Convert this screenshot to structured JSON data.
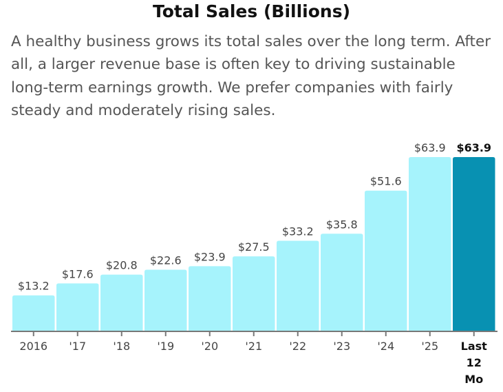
{
  "title": "Total Sales (Billions)",
  "description": "A healthy business grows its total sales over the long term. After all, a larger revenue base is often key to driving sustainable long-term earnings growth. We prefer companies with fairly steady and moderately rising sales.",
  "colors": {
    "bar": "#a6f3fc",
    "highlight": "#0891b2",
    "axis": "#777"
  },
  "chart_data": {
    "type": "bar",
    "title": "Total Sales (Billions)",
    "categories": [
      "2016",
      "'17",
      "'18",
      "'19",
      "'20",
      "'21",
      "'22",
      "'23",
      "'24",
      "'25",
      "Last 12 Mo"
    ],
    "values": [
      13.2,
      17.6,
      20.8,
      22.6,
      23.9,
      27.5,
      33.2,
      35.8,
      51.6,
      63.9,
      63.9
    ],
    "labels": [
      "$13.2",
      "$17.6",
      "$20.8",
      "$22.6",
      "$23.9",
      "$27.5",
      "$33.2",
      "$35.8",
      "$51.6",
      "$63.9",
      "$63.9"
    ],
    "highlight_index": 10,
    "ylim": [
      0,
      64
    ],
    "grid": false
  }
}
